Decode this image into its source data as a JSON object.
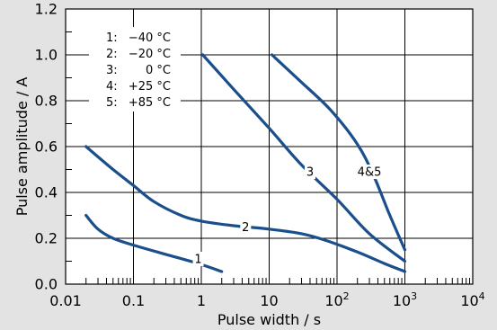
{
  "chart_data": {
    "type": "line",
    "xlabel": "Pulse width / s",
    "ylabel": "Pulse amplitude / A",
    "x_scale": "log",
    "xlim": [
      0.01,
      10000
    ],
    "ylim": [
      0,
      1.2
    ],
    "x_ticks": [
      {
        "value": 0.01,
        "base": "0.01",
        "exp": ""
      },
      {
        "value": 0.1,
        "base": "0.1",
        "exp": ""
      },
      {
        "value": 1,
        "base": "1",
        "exp": ""
      },
      {
        "value": 10,
        "base": "10",
        "exp": ""
      },
      {
        "value": 100,
        "base": "10",
        "exp": "2"
      },
      {
        "value": 1000,
        "base": "10",
        "exp": "3"
      },
      {
        "value": 10000,
        "base": "10",
        "exp": "4"
      }
    ],
    "y_ticks": [
      {
        "value": 0,
        "label": "0.0"
      },
      {
        "value": 0.2,
        "label": "0.2"
      },
      {
        "value": 0.4,
        "label": "0.4"
      },
      {
        "value": 0.6,
        "label": "0.6"
      },
      {
        "value": 0.8,
        "label": "0.8"
      },
      {
        "value": 1.0,
        "label": "1.0"
      },
      {
        "value": 1.2,
        "label": "1.2"
      }
    ],
    "grid": true,
    "legend_position": "top-left",
    "legend": [
      {
        "key": "1:",
        "value": "−40 °C"
      },
      {
        "key": "2:",
        "value": "−20 °C"
      },
      {
        "key": "3:",
        "value": "0 °C"
      },
      {
        "key": "4:",
        "value": "+25 °C"
      },
      {
        "key": "5:",
        "value": "+85 °C"
      }
    ],
    "line_color": "#1a4f8c",
    "series": [
      {
        "label": "1",
        "label_at": {
          "x": 0.9,
          "y": 0.11
        },
        "points": [
          [
            0.02,
            0.3
          ],
          [
            0.03,
            0.24
          ],
          [
            0.05,
            0.2
          ],
          [
            0.1,
            0.17
          ],
          [
            0.3,
            0.13
          ],
          [
            0.9,
            0.09
          ],
          [
            2,
            0.055
          ]
        ]
      },
      {
        "label": "2",
        "label_at": {
          "x": 4.5,
          "y": 0.25
        },
        "points": [
          [
            0.02,
            0.6
          ],
          [
            0.05,
            0.5
          ],
          [
            0.1,
            0.43
          ],
          [
            0.2,
            0.36
          ],
          [
            0.5,
            0.3
          ],
          [
            1,
            0.275
          ],
          [
            3,
            0.255
          ],
          [
            10,
            0.24
          ],
          [
            30,
            0.22
          ],
          [
            70,
            0.19
          ],
          [
            200,
            0.14
          ],
          [
            500,
            0.09
          ],
          [
            1000,
            0.055
          ]
        ]
      },
      {
        "label": "3",
        "label_at": {
          "x": 40,
          "y": 0.49
        },
        "points": [
          [
            1.05,
            1.0
          ],
          [
            3,
            0.85
          ],
          [
            10,
            0.68
          ],
          [
            30,
            0.52
          ],
          [
            100,
            0.37
          ],
          [
            300,
            0.22
          ],
          [
            1000,
            0.1
          ]
        ]
      },
      {
        "label": "4&5",
        "label_at": {
          "x": 300,
          "y": 0.49
        },
        "points": [
          [
            11,
            1.0
          ],
          [
            30,
            0.88
          ],
          [
            80,
            0.76
          ],
          [
            200,
            0.61
          ],
          [
            350,
            0.47
          ],
          [
            600,
            0.3
          ],
          [
            1000,
            0.15
          ]
        ]
      }
    ]
  }
}
